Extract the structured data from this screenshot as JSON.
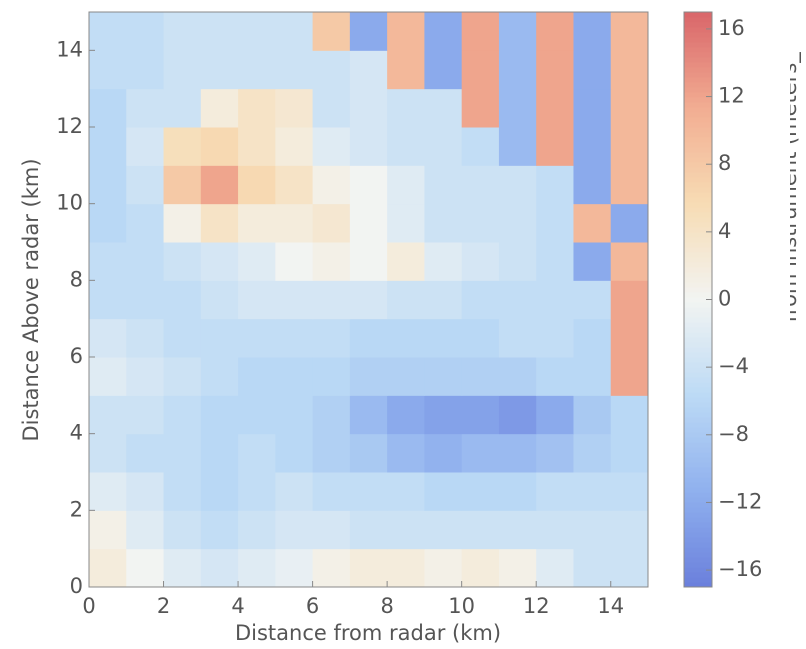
{
  "chart_data": {
    "type": "heatmap",
    "xlabel": "Distance from radar (km)",
    "ylabel": "Distance Above radar  (km)",
    "colorbar_label": "elocity of scatterers away from instrument (meters_",
    "x": [
      0,
      1,
      2,
      3,
      4,
      5,
      6,
      7,
      8,
      9,
      10,
      11,
      12,
      13,
      14,
      15
    ],
    "y": [
      0,
      1,
      2,
      3,
      4,
      5,
      6,
      7,
      8,
      9,
      10,
      11,
      12,
      13,
      14,
      15
    ],
    "xlim": [
      0,
      15
    ],
    "ylim": [
      0,
      15
    ],
    "xticks": [
      0,
      2,
      4,
      6,
      8,
      10,
      12,
      14
    ],
    "yticks": [
      0,
      2,
      4,
      6,
      8,
      10,
      12,
      14
    ],
    "clim": [
      -17,
      17
    ],
    "cticks": [
      {
        "value": -16,
        "label": "−16"
      },
      {
        "value": -12,
        "label": "−12"
      },
      {
        "value": -8,
        "label": "−8"
      },
      {
        "value": -4,
        "label": "−4"
      },
      0,
      4,
      8,
      12,
      16
    ],
    "colormap": [
      "#6a7fdc",
      "#8fb0ee",
      "#bcdaf5",
      "#f2f4f2",
      "#f7dcb4",
      "#f2ad92",
      "#d9666a"
    ],
    "z": [
      [
        2,
        0,
        -2,
        -3,
        -2,
        -1,
        1,
        2,
        2,
        1,
        2,
        1,
        -2,
        -4,
        -4
      ],
      [
        1,
        -2,
        -4,
        -5,
        -4,
        -3,
        -3,
        -4,
        -4,
        -4,
        -4,
        -4,
        -4,
        -4,
        -4
      ],
      [
        -2,
        -3,
        -5,
        -6,
        -5,
        -4,
        -5,
        -5,
        -5,
        -6,
        -6,
        -6,
        -5,
        -5,
        -5
      ],
      [
        -4,
        -5,
        -5,
        -6,
        -5,
        -6,
        -7,
        -8,
        -10,
        -11,
        -10,
        -10,
        -9,
        -7,
        -6
      ],
      [
        -4,
        -4,
        -5,
        -6,
        -6,
        -6,
        -7,
        -10,
        -12,
        -13,
        -13,
        -14,
        -12,
        -8,
        -6
      ],
      [
        -2,
        -3,
        -4,
        -5,
        -6,
        -6,
        -6,
        -7,
        -7,
        -7,
        -7,
        -7,
        -6,
        -6,
        12
      ],
      [
        -3,
        -4,
        -5,
        -5,
        -5,
        -5,
        -5,
        -6,
        -6,
        -6,
        -6,
        -5,
        -5,
        -6,
        12
      ],
      [
        -5,
        -5,
        -5,
        -4,
        -3,
        -3,
        -3,
        -3,
        -4,
        -4,
        -5,
        -5,
        -5,
        -5,
        12
      ],
      [
        -5,
        -5,
        -4,
        -3,
        -2,
        0,
        1,
        0,
        2,
        -2,
        -3,
        -4,
        -5,
        -12,
        10
      ],
      [
        -6,
        -5,
        1,
        4,
        2,
        2,
        3,
        0,
        -2,
        -4,
        -4,
        -4,
        -5,
        10,
        -12
      ],
      [
        -6,
        -4,
        8,
        12,
        6,
        4,
        1,
        0,
        -2,
        -4,
        -4,
        -4,
        -5,
        -12,
        10
      ],
      [
        -6,
        -3,
        5,
        6,
        4,
        2,
        -2,
        -3,
        -4,
        -4,
        -5,
        -10,
        12,
        -12,
        10
      ],
      [
        -6,
        -4,
        -4,
        2,
        4,
        3,
        -4,
        -3,
        -4,
        -4,
        12,
        -10,
        12,
        -12,
        10
      ],
      [
        -5,
        -5,
        -4,
        -4,
        -4,
        -4,
        -4,
        -3,
        10,
        -12,
        12,
        -10,
        12,
        -12,
        10
      ],
      [
        -5,
        -5,
        -4,
        -4,
        -4,
        -4,
        8,
        -12,
        10,
        -12,
        12,
        -10,
        12,
        -12,
        10
      ]
    ]
  }
}
